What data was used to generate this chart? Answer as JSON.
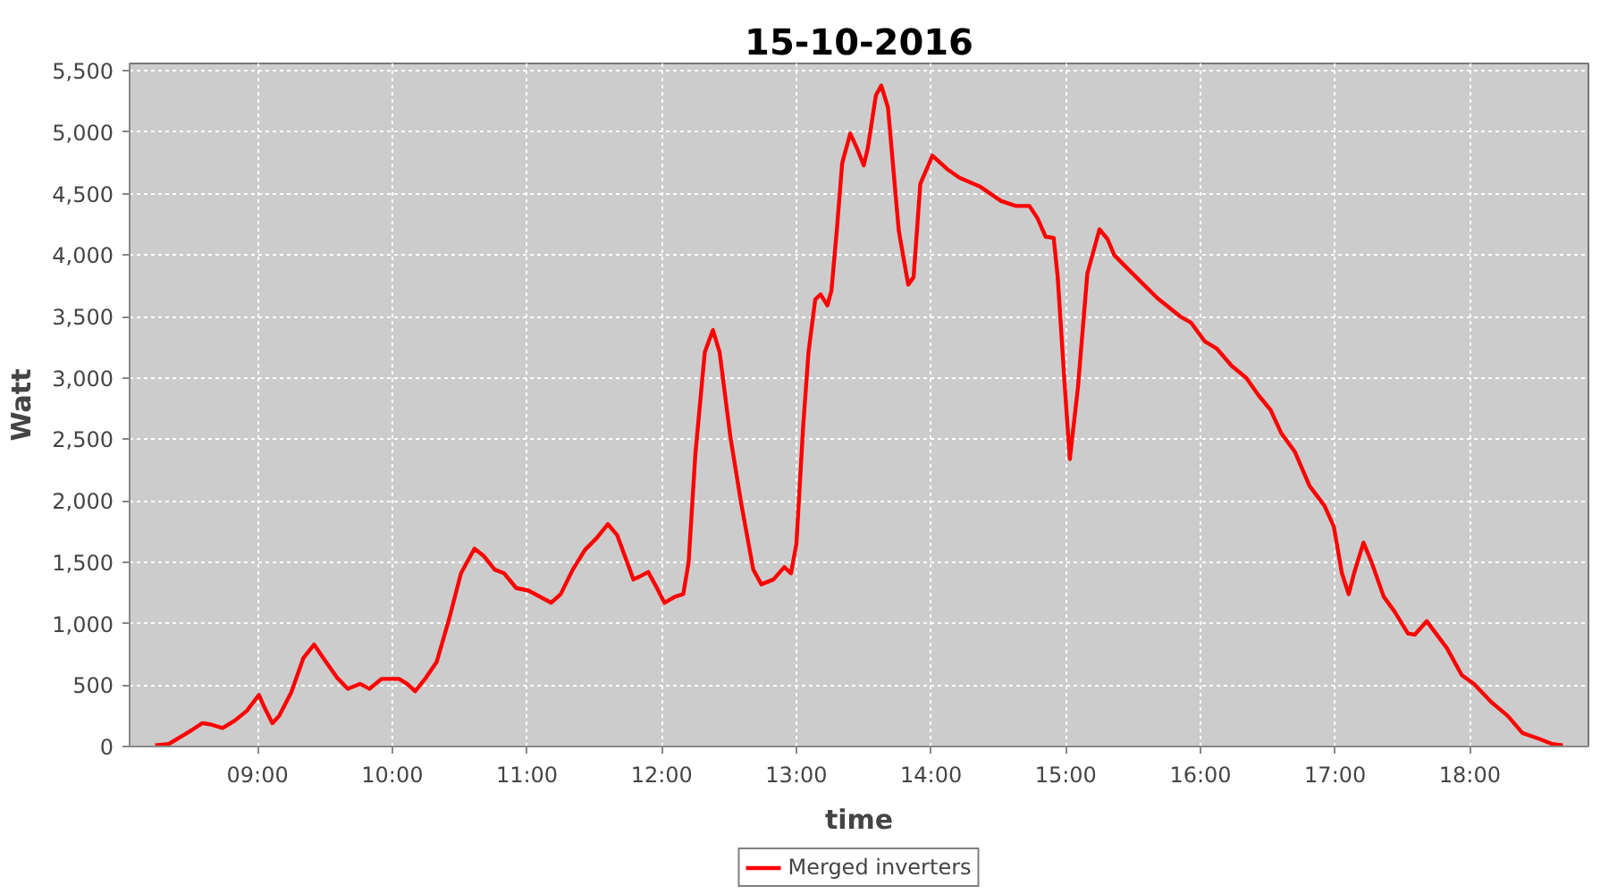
{
  "chart_data": {
    "type": "line",
    "title": "15-10-2016",
    "xlabel": "time",
    "ylabel": "Watt",
    "xlim": [
      8.05,
      18.88
    ],
    "ylim": [
      0,
      5560
    ],
    "xticks": [
      {
        "value": 9,
        "label": "09:00"
      },
      {
        "value": 10,
        "label": "10:00"
      },
      {
        "value": 11,
        "label": "11:00"
      },
      {
        "value": 12,
        "label": "12:00"
      },
      {
        "value": 13,
        "label": "13:00"
      },
      {
        "value": 14,
        "label": "14:00"
      },
      {
        "value": 15,
        "label": "15:00"
      },
      {
        "value": 16,
        "label": "16:00"
      },
      {
        "value": 17,
        "label": "17:00"
      },
      {
        "value": 18,
        "label": "18:00"
      }
    ],
    "yticks": [
      0,
      500,
      {
        "value": 1000,
        "label": "1,000"
      },
      {
        "value": 1500,
        "label": "1,500"
      },
      {
        "value": 2000,
        "label": "2,000"
      },
      {
        "value": 2500,
        "label": "2,500"
      },
      {
        "value": 3000,
        "label": "3,000"
      },
      {
        "value": 3500,
        "label": "3,500"
      },
      {
        "value": 4000,
        "label": "4,000"
      },
      {
        "value": 4500,
        "label": "4,500"
      },
      {
        "value": 5000,
        "label": "5,000"
      },
      {
        "value": 5500,
        "label": "5,500"
      }
    ],
    "grid": true,
    "legend": "bottom",
    "line_style": "solid",
    "x": [
      8.24,
      8.34,
      8.43,
      8.52,
      8.59,
      8.65,
      8.74,
      8.83,
      8.92,
      9.01,
      9.05,
      9.11,
      9.16,
      9.25,
      9.34,
      9.42,
      9.5,
      9.59,
      9.67,
      9.76,
      9.83,
      9.92,
      10.05,
      10.11,
      10.17,
      10.25,
      10.33,
      10.42,
      10.51,
      10.61,
      10.68,
      10.76,
      10.83,
      10.92,
      11.01,
      11.18,
      11.25,
      11.34,
      11.43,
      11.52,
      11.6,
      11.67,
      11.79,
      11.83,
      11.9,
      11.96,
      12.02,
      12.1,
      12.16,
      12.2,
      12.25,
      12.32,
      12.38,
      12.43,
      12.51,
      12.59,
      12.68,
      12.74,
      12.83,
      12.91,
      12.96,
      13.0,
      13.05,
      13.09,
      13.14,
      13.18,
      13.23,
      13.26,
      13.3,
      13.34,
      13.4,
      13.45,
      13.5,
      13.53,
      13.59,
      13.63,
      13.68,
      13.76,
      13.83,
      13.87,
      13.92,
      14.01,
      14.12,
      14.21,
      14.36,
      14.52,
      14.63,
      14.73,
      14.79,
      14.85,
      14.91,
      14.94,
      14.99,
      15.03,
      15.09,
      15.16,
      15.25,
      15.31,
      15.36,
      15.45,
      15.56,
      15.68,
      15.85,
      15.93,
      16.03,
      16.12,
      16.23,
      16.34,
      16.43,
      16.52,
      16.6,
      16.7,
      16.81,
      16.92,
      16.99,
      17.05,
      17.1,
      17.14,
      17.21,
      17.27,
      17.36,
      17.44,
      17.54,
      17.59,
      17.68,
      17.83,
      17.94,
      18.03,
      18.16,
      18.28,
      18.39,
      18.52,
      18.61,
      18.69
    ],
    "series": [
      {
        "name": "Merged inverters",
        "color": "#ff0000",
        "values": [
          10,
          20,
          80,
          140,
          190,
          180,
          150,
          210,
          290,
          420,
          320,
          190,
          250,
          440,
          720,
          830,
          700,
          560,
          470,
          510,
          470,
          550,
          550,
          510,
          450,
          560,
          690,
          1030,
          1410,
          1610,
          1550,
          1440,
          1410,
          1290,
          1270,
          1170,
          1240,
          1440,
          1600,
          1700,
          1810,
          1720,
          1360,
          1380,
          1420,
          1300,
          1170,
          1220,
          1240,
          1500,
          2380,
          3210,
          3390,
          3210,
          2520,
          1980,
          1440,
          1320,
          1360,
          1460,
          1410,
          1650,
          2600,
          3210,
          3640,
          3680,
          3590,
          3710,
          4200,
          4750,
          4990,
          4870,
          4730,
          4870,
          5300,
          5380,
          5200,
          4200,
          3760,
          3820,
          4580,
          4810,
          4700,
          4630,
          4560,
          4440,
          4400,
          4400,
          4300,
          4150,
          4140,
          3820,
          2970,
          2340,
          2920,
          3850,
          4210,
          4130,
          4000,
          3900,
          3780,
          3650,
          3500,
          3450,
          3300,
          3240,
          3100,
          3000,
          2860,
          2740,
          2550,
          2400,
          2120,
          1960,
          1790,
          1410,
          1240,
          1410,
          1660,
          1500,
          1220,
          1100,
          920,
          910,
          1020,
          800,
          580,
          510,
          360,
          250,
          110,
          60,
          20,
          10
        ]
      }
    ]
  }
}
